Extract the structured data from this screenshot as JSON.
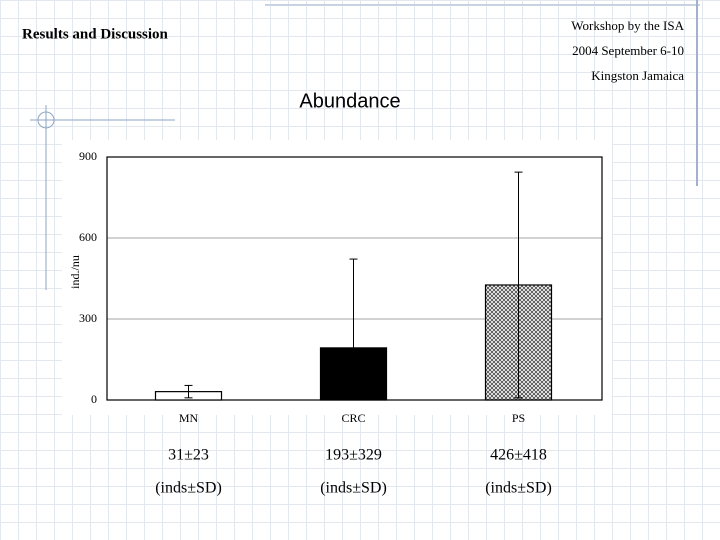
{
  "header": {
    "title": "Results and Discussion",
    "event": "Workshop by the ISA",
    "date": "2004 September 6-10",
    "place": "Kingston Jamaica"
  },
  "chart_data": {
    "type": "bar",
    "title": "Abundance",
    "y_label": "ind./nu",
    "categories": [
      "MN",
      "CRC",
      "PS"
    ],
    "values": [
      31,
      193,
      426
    ],
    "errors": [
      23,
      329,
      418
    ],
    "value_labels": [
      "31±23",
      "193±329",
      "426±418"
    ],
    "notes": [
      "(inds±SD)",
      "(inds±SD)",
      "(inds±SD)"
    ],
    "colors": [
      "#ffffff",
      "#000000",
      "#b4b4b4"
    ],
    "ylim": [
      0,
      900
    ],
    "yticks": [
      0,
      300,
      600,
      900
    ],
    "grid": true
  }
}
